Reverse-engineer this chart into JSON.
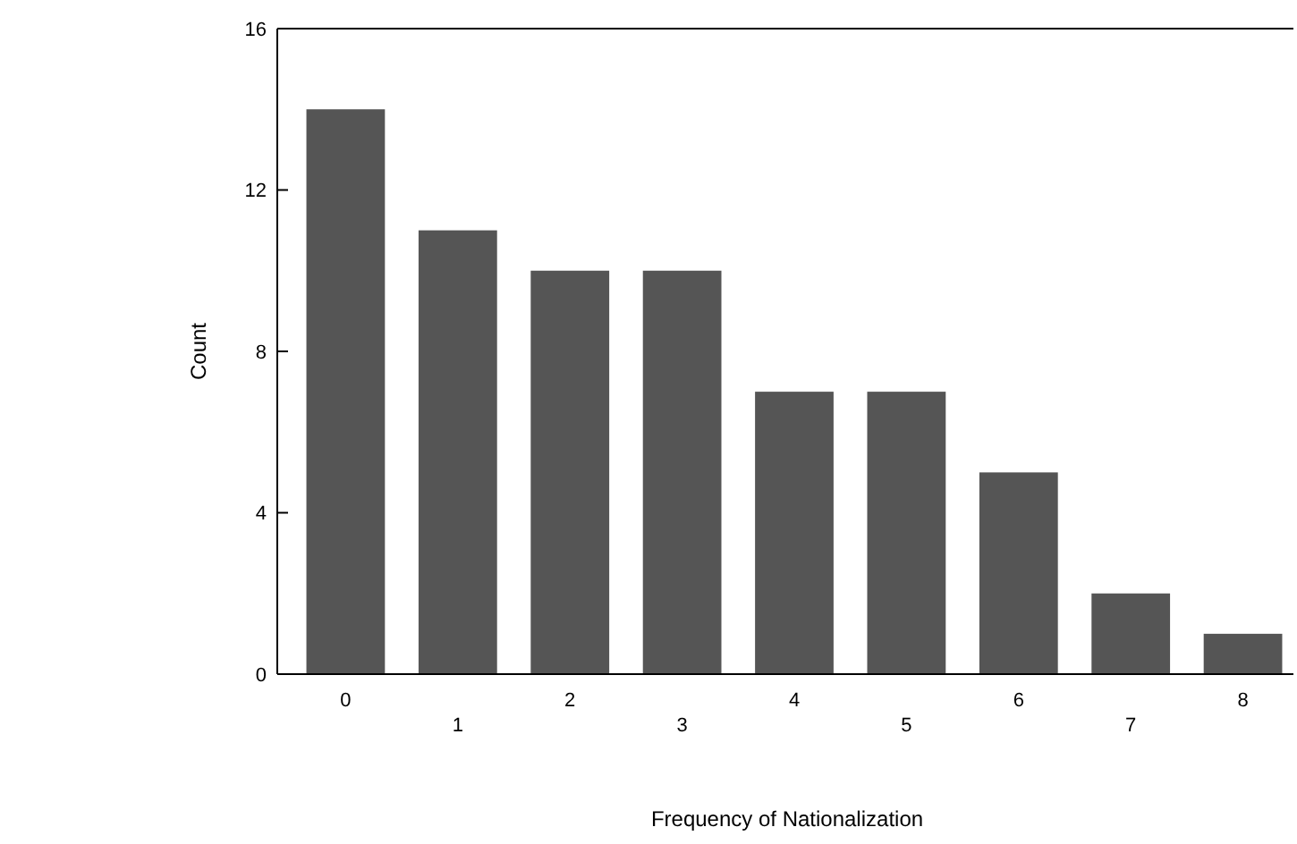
{
  "chart_data": {
    "type": "bar",
    "xlabel": "Frequency of Nationalization",
    "ylabel": "Count",
    "categories": [
      "0",
      "1",
      "2",
      "3",
      "4",
      "5",
      "6",
      "7",
      "8"
    ],
    "values": [
      14,
      11,
      10,
      10,
      7,
      7,
      5,
      2,
      1
    ],
    "color": "#555555",
    "ylim": [
      0,
      16
    ],
    "yticks": [
      0,
      4,
      8,
      12,
      16
    ],
    "grid": false
  }
}
